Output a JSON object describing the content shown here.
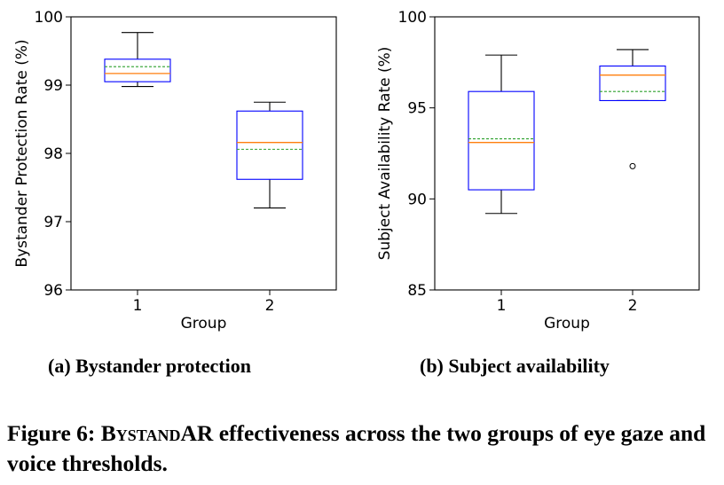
{
  "chart_data": [
    {
      "type": "box",
      "subcaption": "(a) Bystander protection",
      "xlabel": "Group",
      "ylabel": "Bystander Protection Rate (%)",
      "ylim": [
        96,
        100
      ],
      "yticks": [
        "96",
        "97",
        "98",
        "99",
        "100"
      ],
      "categories": [
        "1",
        "2"
      ],
      "boxes": [
        {
          "category": "1",
          "whisker_low": 98.98,
          "q1": 99.05,
          "median": 99.17,
          "mean": 99.27,
          "q3": 99.38,
          "whisker_high": 99.77,
          "outliers": []
        },
        {
          "category": "2",
          "whisker_low": 97.2,
          "q1": 97.62,
          "median": 98.16,
          "mean": 98.06,
          "q3": 98.62,
          "whisker_high": 98.75,
          "outliers": []
        }
      ],
      "grid": false
    },
    {
      "type": "box",
      "subcaption": "(b) Subject availability",
      "xlabel": "Group",
      "ylabel": "Subject Availability Rate (%)",
      "ylim": [
        85,
        100
      ],
      "yticks": [
        "85",
        "90",
        "95",
        "100"
      ],
      "categories": [
        "1",
        "2"
      ],
      "boxes": [
        {
          "category": "1",
          "whisker_low": 89.2,
          "q1": 90.5,
          "median": 93.1,
          "mean": 93.3,
          "q3": 95.9,
          "whisker_high": 97.9,
          "outliers": []
        },
        {
          "category": "2",
          "whisker_low": 95.4,
          "q1": 95.4,
          "median": 96.8,
          "mean": 95.9,
          "q3": 97.3,
          "whisker_high": 98.2,
          "outliers": [
            91.8
          ]
        }
      ],
      "grid": false
    }
  ],
  "caption": {
    "prefix": "Figure 6: ",
    "name_initial": "B",
    "name_smallcaps": "ystand",
    "name_suffix": "AR",
    "rest": " effectiveness across the two groups of eye gaze and voice thresholds."
  },
  "colors": {
    "box": "#0000ff",
    "median": "#ff7f0e",
    "mean": "#2ca02c",
    "whisker": "#000000"
  }
}
